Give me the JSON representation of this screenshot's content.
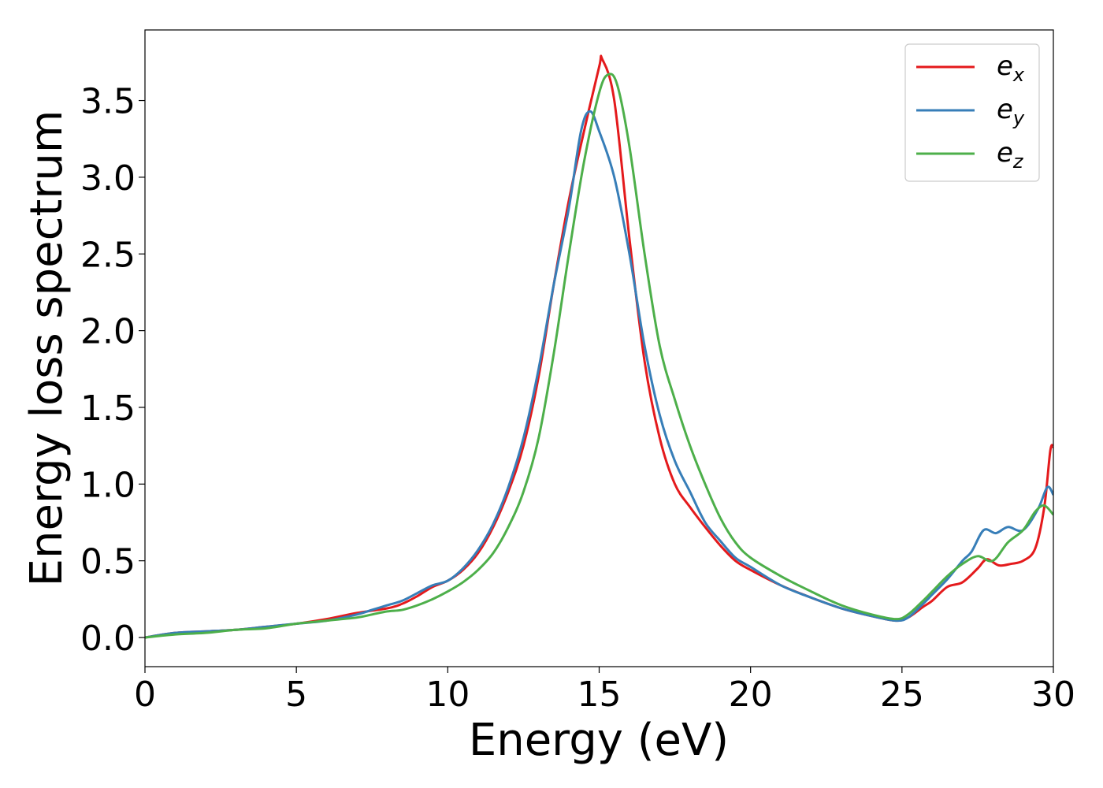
{
  "chart_data": {
    "type": "line",
    "xlabel": "Energy (eV)",
    "ylabel": "Energy loss spectrum",
    "xlim": [
      0,
      30
    ],
    "ylim": [
      -0.19,
      3.96
    ],
    "xticks": [
      0,
      5,
      10,
      15,
      20,
      25,
      30
    ],
    "xtick_labels": [
      "0",
      "5",
      "10",
      "15",
      "20",
      "25",
      "30"
    ],
    "yticks": [
      0.0,
      0.5,
      1.0,
      1.5,
      2.0,
      2.5,
      3.0,
      3.5
    ],
    "ytick_labels": [
      "0.0",
      "0.5",
      "1.0",
      "1.5",
      "2.0",
      "2.5",
      "3.0",
      "3.5"
    ],
    "grid": false,
    "legend_position": "top-right",
    "series": [
      {
        "name": "e_x",
        "legend_base": "e",
        "legend_sub": "x",
        "color": "#e41a1c",
        "x": [
          0,
          1,
          2,
          3,
          4,
          5,
          6,
          7,
          8,
          8.5,
          9,
          9.5,
          10,
          10.5,
          11,
          11.5,
          12,
          12.5,
          13,
          13.5,
          14,
          14.5,
          15,
          15.1,
          15.5,
          16,
          16.5,
          17,
          17.5,
          18,
          18.5,
          19,
          19.5,
          20,
          21,
          22,
          23,
          24,
          24.8,
          25.2,
          25.7,
          26,
          26.5,
          27,
          27.5,
          27.8,
          28.2,
          28.6,
          29,
          29.4,
          29.7,
          29.9,
          30
        ],
        "y": [
          0.0,
          0.03,
          0.04,
          0.05,
          0.07,
          0.09,
          0.12,
          0.16,
          0.19,
          0.22,
          0.27,
          0.33,
          0.37,
          0.44,
          0.55,
          0.72,
          0.95,
          1.25,
          1.7,
          2.3,
          2.85,
          3.3,
          3.72,
          3.77,
          3.5,
          2.6,
          1.8,
          1.3,
          1.0,
          0.85,
          0.72,
          0.6,
          0.5,
          0.44,
          0.34,
          0.26,
          0.19,
          0.14,
          0.11,
          0.13,
          0.2,
          0.24,
          0.33,
          0.36,
          0.45,
          0.51,
          0.47,
          0.48,
          0.5,
          0.58,
          0.85,
          1.22,
          1.24
        ]
      },
      {
        "name": "e_y",
        "legend_base": "e",
        "legend_sub": "y",
        "color": "#377eb8",
        "x": [
          0,
          1,
          2,
          3,
          4,
          5,
          6,
          7,
          7.5,
          8,
          8.5,
          9,
          9.5,
          10,
          10.5,
          11,
          11.5,
          12,
          12.5,
          13,
          13.5,
          14,
          14.4,
          14.7,
          15,
          15.5,
          16,
          16.5,
          17,
          17.5,
          18,
          18.5,
          19,
          19.5,
          20,
          21,
          22,
          23,
          24,
          24.8,
          25.2,
          25.7,
          26,
          26.5,
          27,
          27.3,
          27.7,
          28.1,
          28.5,
          29,
          29.5,
          29.8,
          30
        ],
        "y": [
          0.0,
          0.03,
          0.04,
          0.05,
          0.07,
          0.09,
          0.11,
          0.15,
          0.18,
          0.21,
          0.24,
          0.29,
          0.34,
          0.37,
          0.45,
          0.57,
          0.74,
          0.98,
          1.3,
          1.75,
          2.3,
          2.8,
          3.3,
          3.43,
          3.3,
          3.0,
          2.5,
          1.9,
          1.45,
          1.15,
          0.95,
          0.75,
          0.63,
          0.52,
          0.46,
          0.34,
          0.26,
          0.19,
          0.14,
          0.11,
          0.13,
          0.22,
          0.28,
          0.38,
          0.5,
          0.56,
          0.7,
          0.68,
          0.72,
          0.7,
          0.84,
          0.98,
          0.93
        ]
      },
      {
        "name": "e_z",
        "legend_base": "e",
        "legend_sub": "z",
        "color": "#4daf4a",
        "x": [
          0,
          1,
          2,
          3,
          4,
          5,
          6,
          7,
          7.5,
          8,
          8.5,
          9,
          9.5,
          10,
          10.5,
          11,
          11.5,
          12,
          12.5,
          13,
          13.5,
          14,
          14.5,
          15,
          15.3,
          15.6,
          16,
          16.5,
          17,
          17.5,
          18,
          18.5,
          19,
          19.5,
          20,
          21,
          22,
          23,
          24,
          24.8,
          25.2,
          25.7,
          26,
          26.5,
          27,
          27.5,
          28,
          28.5,
          29,
          29.4,
          29.7,
          30
        ],
        "y": [
          0.0,
          0.02,
          0.03,
          0.05,
          0.06,
          0.09,
          0.11,
          0.13,
          0.15,
          0.17,
          0.18,
          0.21,
          0.25,
          0.3,
          0.36,
          0.44,
          0.55,
          0.72,
          0.95,
          1.3,
          1.85,
          2.5,
          3.1,
          3.55,
          3.67,
          3.6,
          3.2,
          2.5,
          1.9,
          1.55,
          1.25,
          1.0,
          0.78,
          0.62,
          0.52,
          0.4,
          0.3,
          0.21,
          0.15,
          0.12,
          0.15,
          0.24,
          0.3,
          0.4,
          0.48,
          0.53,
          0.5,
          0.62,
          0.7,
          0.82,
          0.86,
          0.8
        ]
      }
    ]
  }
}
